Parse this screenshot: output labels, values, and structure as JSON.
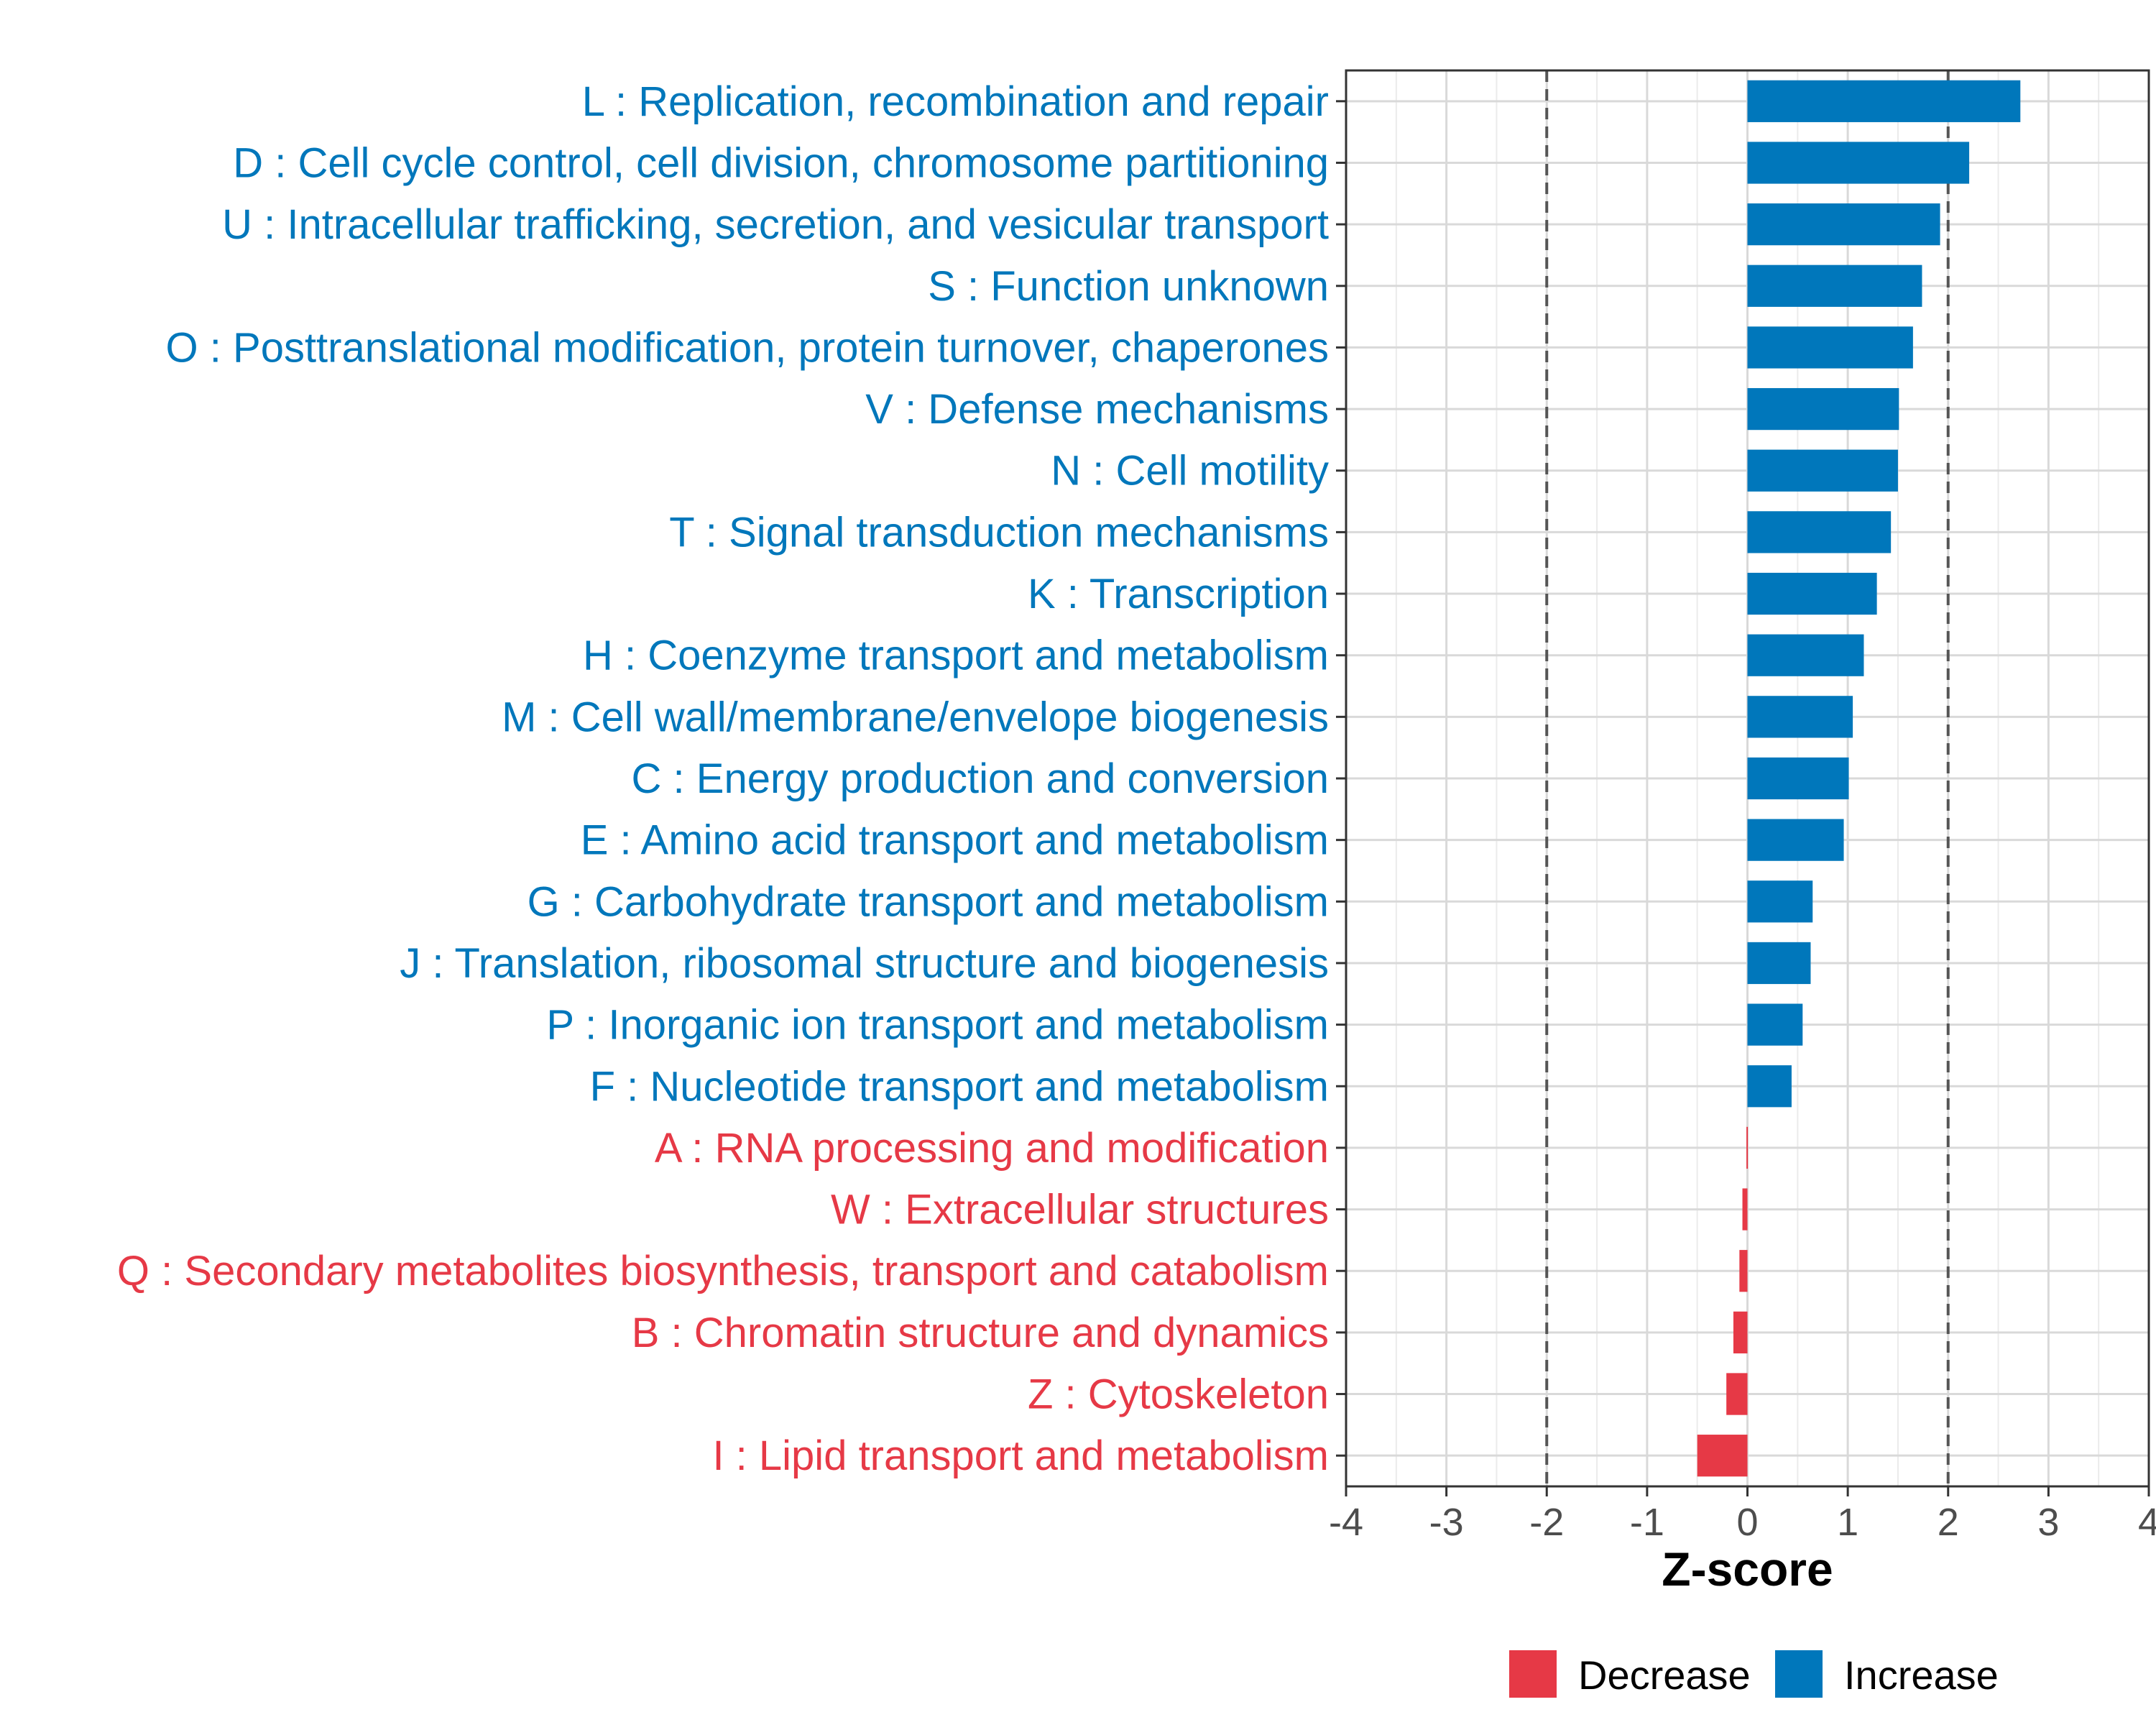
{
  "chart_data": {
    "type": "bar",
    "orientation": "horizontal",
    "xlabel": "Z-score",
    "xlim": [
      -4,
      4
    ],
    "xticks": [
      "-4",
      "-3",
      "-2",
      "-1",
      "0",
      "1",
      "2",
      "3",
      "4"
    ],
    "reference_lines": [
      -2,
      2
    ],
    "grid": true,
    "categories": [
      {
        "label": "L : Replication, recombination and repair",
        "value": 2.72,
        "group": "Increase"
      },
      {
        "label": "D : Cell cycle control, cell division, chromosome partitioning",
        "value": 2.21,
        "group": "Increase"
      },
      {
        "label": "U : Intracellular trafficking, secretion, and vesicular transport",
        "value": 1.92,
        "group": "Increase"
      },
      {
        "label": "S : Function unknown",
        "value": 1.74,
        "group": "Increase"
      },
      {
        "label": "O : Posttranslational modification, protein turnover, chaperones",
        "value": 1.65,
        "group": "Increase"
      },
      {
        "label": "V : Defense mechanisms",
        "value": 1.51,
        "group": "Increase"
      },
      {
        "label": "N : Cell motility",
        "value": 1.5,
        "group": "Increase"
      },
      {
        "label": "T : Signal transduction mechanisms",
        "value": 1.43,
        "group": "Increase"
      },
      {
        "label": "K : Transcription",
        "value": 1.29,
        "group": "Increase"
      },
      {
        "label": "H : Coenzyme transport and metabolism",
        "value": 1.16,
        "group": "Increase"
      },
      {
        "label": "M : Cell wall/membrane/envelope biogenesis",
        "value": 1.05,
        "group": "Increase"
      },
      {
        "label": "C : Energy production and conversion",
        "value": 1.01,
        "group": "Increase"
      },
      {
        "label": "E : Amino acid transport and metabolism",
        "value": 0.96,
        "group": "Increase"
      },
      {
        "label": "G : Carbohydrate transport and metabolism",
        "value": 0.65,
        "group": "Increase"
      },
      {
        "label": "J : Translation, ribosomal structure and biogenesis",
        "value": 0.63,
        "group": "Increase"
      },
      {
        "label": "P : Inorganic ion transport and metabolism",
        "value": 0.55,
        "group": "Increase"
      },
      {
        "label": "F : Nucleotide transport and metabolism",
        "value": 0.44,
        "group": "Increase"
      },
      {
        "label": "A : RNA processing and modification",
        "value": -0.01,
        "group": "Decrease"
      },
      {
        "label": "W : Extracellular structures",
        "value": -0.05,
        "group": "Decrease"
      },
      {
        "label": "Q : Secondary metabolites biosynthesis, transport and catabolism",
        "value": -0.08,
        "group": "Decrease"
      },
      {
        "label": "B : Chromatin structure and dynamics",
        "value": -0.14,
        "group": "Decrease"
      },
      {
        "label": "Z : Cytoskeleton",
        "value": -0.21,
        "group": "Decrease"
      },
      {
        "label": "I : Lipid transport and metabolism",
        "value": -0.5,
        "group": "Decrease"
      }
    ],
    "legend": {
      "position": "bottom",
      "items": [
        {
          "label": "Decrease",
          "color": "#e63946"
        },
        {
          "label": "Increase",
          "color": "#0077bb"
        }
      ]
    },
    "colors": {
      "Increase": "#0077bb",
      "Decrease": "#e63946"
    }
  }
}
